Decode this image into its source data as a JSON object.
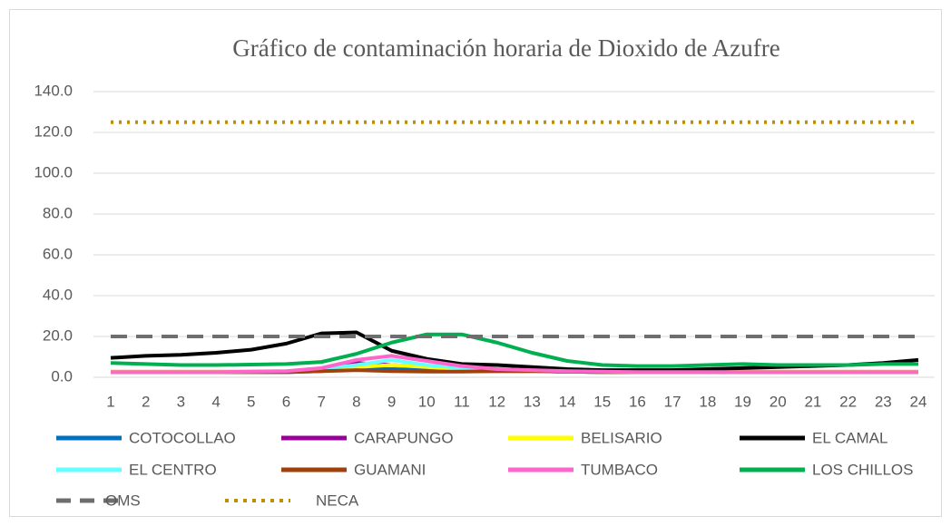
{
  "chart_data": {
    "type": "line",
    "title": "Gráfico de contaminación horaria de Dioxido de Azufre",
    "categories": [
      "1",
      "2",
      "3",
      "4",
      "5",
      "6",
      "7",
      "8",
      "9",
      "10",
      "11",
      "12",
      "13",
      "14",
      "15",
      "16",
      "17",
      "18",
      "19",
      "20",
      "21",
      "22",
      "23",
      "24"
    ],
    "ylim": [
      0,
      140
    ],
    "yticks": [
      {
        "value": 0,
        "label": "0.0"
      },
      {
        "value": 20,
        "label": "20.0"
      },
      {
        "value": 40,
        "label": "40.0"
      },
      {
        "value": 60,
        "label": "60.0"
      },
      {
        "value": 80,
        "label": "80.0"
      },
      {
        "value": 100,
        "label": "100.0"
      },
      {
        "value": 120,
        "label": "120.0"
      },
      {
        "value": 140,
        "label": "140.0"
      }
    ],
    "grid": true,
    "series": [
      {
        "name": "COTOCOLLAO",
        "color": "#0070c0",
        "values": [
          2.5,
          2.5,
          2.5,
          2.5,
          2.5,
          2.5,
          3,
          4,
          4,
          3.5,
          3,
          3,
          3,
          2.8,
          2.5,
          2.5,
          2.5,
          2.5,
          2.5,
          2.5,
          2.5,
          2.5,
          2.5,
          2.5
        ]
      },
      {
        "name": "CARAPUNGO",
        "color": "#990099",
        "values": [
          2.5,
          2.5,
          2.5,
          2.5,
          2.5,
          2.8,
          4,
          7,
          6,
          5,
          4,
          3.5,
          3,
          2.8,
          2.5,
          2.5,
          2.5,
          2.5,
          2.5,
          2.5,
          2.5,
          2.5,
          2.5,
          2.5
        ]
      },
      {
        "name": "BELISARIO",
        "color": "#ffff00",
        "values": [
          3,
          3,
          3,
          3,
          3,
          3,
          3.5,
          5,
          6,
          5,
          4,
          3.5,
          3,
          3,
          3,
          3,
          3,
          3,
          3,
          3,
          3,
          3,
          3,
          3
        ]
      },
      {
        "name": "EL CAMAL",
        "color": "#000000",
        "values": [
          9.5,
          10.5,
          11,
          12,
          13.5,
          16.5,
          21.5,
          22,
          13,
          9,
          6.5,
          6,
          5,
          4,
          3.5,
          3.5,
          3.5,
          4,
          4.5,
          5,
          5.5,
          6,
          7,
          8.5
        ]
      },
      {
        "name": "EL CENTRO",
        "color": "#66ffff",
        "values": [
          2.5,
          2.5,
          2.5,
          2.5,
          2.5,
          2.8,
          4,
          6,
          8.5,
          6,
          4.5,
          3.5,
          3,
          2.8,
          2.5,
          2.5,
          2.5,
          2.5,
          2.5,
          2.5,
          2.5,
          2.5,
          2.5,
          2.5
        ]
      },
      {
        "name": "GUAMANI",
        "color": "#a0410d",
        "values": [
          2.5,
          2.5,
          2.5,
          2.5,
          2.5,
          2.5,
          3,
          3.5,
          3,
          2.8,
          2.8,
          3,
          3,
          2.8,
          2.5,
          2.5,
          2.5,
          2.5,
          2.5,
          2.5,
          2.5,
          2.5,
          2.5,
          2.5
        ]
      },
      {
        "name": "TUMBACO",
        "color": "#ff66cc",
        "values": [
          2.5,
          2.5,
          2.5,
          2.5,
          2.8,
          3,
          4.5,
          8.5,
          10.5,
          8,
          5.5,
          4,
          3.5,
          3,
          2.8,
          2.5,
          2.5,
          2.5,
          2.5,
          2.5,
          2.5,
          2.5,
          2.5,
          2.5
        ]
      },
      {
        "name": "LOS CHILLOS",
        "color": "#00b050",
        "values": [
          7,
          6.5,
          6,
          6,
          6.2,
          6.5,
          7.5,
          11.5,
          17,
          21,
          21,
          17,
          12,
          8,
          6,
          5.5,
          5.5,
          6,
          6.5,
          6,
          6,
          6,
          6.5,
          6.5
        ]
      },
      {
        "name": "OMS",
        "color": "#6e6e6e",
        "dash": "dashed",
        "values": [
          20,
          20,
          20,
          20,
          20,
          20,
          20,
          20,
          20,
          20,
          20,
          20,
          20,
          20,
          20,
          20,
          20,
          20,
          20,
          20,
          20,
          20,
          20,
          20
        ]
      },
      {
        "name": "NECA",
        "color": "#bf8f00",
        "dash": "dotted",
        "values": [
          125,
          125,
          125,
          125,
          125,
          125,
          125,
          125,
          125,
          125,
          125,
          125,
          125,
          125,
          125,
          125,
          125,
          125,
          125,
          125,
          125,
          125,
          125,
          125
        ]
      }
    ]
  }
}
